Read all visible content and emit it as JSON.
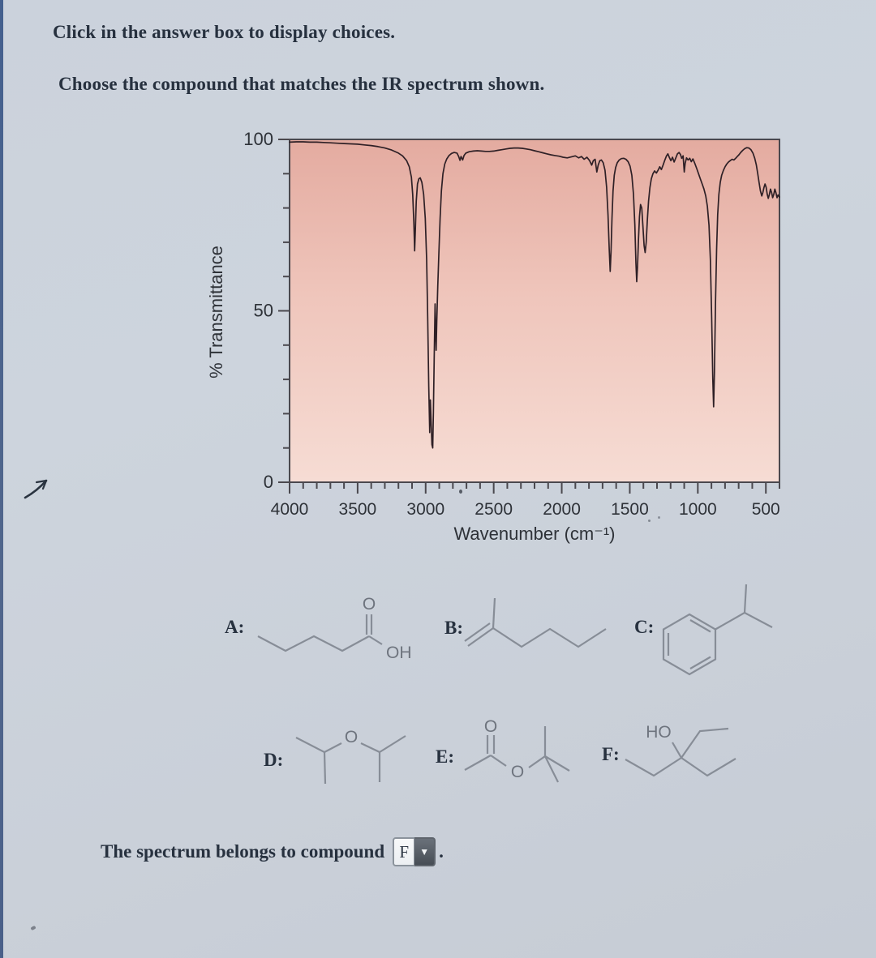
{
  "page": {
    "instruction_1": "Click in the answer box to display choices.",
    "instruction_2": "Choose the compound that matches the IR spectrum shown.",
    "answer_prefix": "The spectrum belongs to compound",
    "answer_value": "F",
    "answer_suffix": ".",
    "dropdown_glyph": "▼"
  },
  "chart_data": {
    "type": "line",
    "title": "",
    "xlabel": "Wavenumber (cm⁻¹)",
    "ylabel": "% Transmittance",
    "x_ticks": [
      4000,
      3500,
      3000,
      2500,
      2000,
      1500,
      1000,
      500
    ],
    "y_ticks": [
      100,
      50,
      0
    ],
    "x_minor_step": 100,
    "y_minor_step": 10,
    "xlim": [
      4000,
      400
    ],
    "ylim": [
      0,
      100
    ],
    "x_axis_reversed": true,
    "grid": false,
    "legend": false,
    "colors": {
      "plot_bg_top": "#e4aba0",
      "plot_bg_mid": "#efc5bb",
      "plot_bg_bottom": "#f6dcd4",
      "line": "#2e2026",
      "axis": "#4a484e"
    },
    "series": [
      {
        "name": "IR spectrum (% transmittance vs wavenumber)",
        "points": [
          [
            4000,
            99.2
          ],
          [
            3950,
            99.3
          ],
          [
            3900,
            99.3
          ],
          [
            3850,
            99.2
          ],
          [
            3800,
            99.2
          ],
          [
            3750,
            99.1
          ],
          [
            3700,
            99.0
          ],
          [
            3650,
            98.9
          ],
          [
            3600,
            98.8
          ],
          [
            3550,
            98.7
          ],
          [
            3500,
            98.6
          ],
          [
            3450,
            98.4
          ],
          [
            3400,
            98.2
          ],
          [
            3350,
            97.9
          ],
          [
            3300,
            97.5
          ],
          [
            3250,
            96.9
          ],
          [
            3200,
            96.0
          ],
          [
            3170,
            95.2
          ],
          [
            3140,
            93.8
          ],
          [
            3120,
            92.0
          ],
          [
            3105,
            89.0
          ],
          [
            3095,
            84.0
          ],
          [
            3087,
            76.0
          ],
          [
            3081,
            67.5
          ],
          [
            3076,
            73.0
          ],
          [
            3069,
            82.0
          ],
          [
            3060,
            87.0
          ],
          [
            3050,
            88.5
          ],
          [
            3040,
            88.8
          ],
          [
            3028,
            87.5
          ],
          [
            3015,
            84.0
          ],
          [
            3003,
            77.0
          ],
          [
            2993,
            65.0
          ],
          [
            2985,
            48.0
          ],
          [
            2977,
            28.0
          ],
          [
            2970,
            14.5
          ],
          [
            2965,
            24.0
          ],
          [
            2960,
            18.0
          ],
          [
            2954,
            11.0
          ],
          [
            2948,
            10.0
          ],
          [
            2943,
            20.0
          ],
          [
            2937,
            36.0
          ],
          [
            2931,
            52.0
          ],
          [
            2927,
            45.0
          ],
          [
            2923,
            38.5
          ],
          [
            2918,
            47.0
          ],
          [
            2911,
            57.0
          ],
          [
            2903,
            67.0
          ],
          [
            2894,
            77.0
          ],
          [
            2884,
            85.0
          ],
          [
            2873,
            90.0
          ],
          [
            2860,
            92.8
          ],
          [
            2845,
            94.3
          ],
          [
            2828,
            95.3
          ],
          [
            2810,
            95.9
          ],
          [
            2790,
            96.2
          ],
          [
            2770,
            96.0
          ],
          [
            2757,
            95.0
          ],
          [
            2748,
            93.9
          ],
          [
            2740,
            95.0
          ],
          [
            2728,
            94.0
          ],
          [
            2718,
            95.3
          ],
          [
            2705,
            96.0
          ],
          [
            2680,
            96.4
          ],
          [
            2650,
            96.6
          ],
          [
            2620,
            96.7
          ],
          [
            2590,
            96.6
          ],
          [
            2560,
            96.5
          ],
          [
            2530,
            96.5
          ],
          [
            2500,
            96.6
          ],
          [
            2470,
            96.8
          ],
          [
            2440,
            97.0
          ],
          [
            2410,
            97.2
          ],
          [
            2380,
            97.4
          ],
          [
            2350,
            97.5
          ],
          [
            2320,
            97.5
          ],
          [
            2290,
            97.4
          ],
          [
            2260,
            97.2
          ],
          [
            2230,
            97.0
          ],
          [
            2200,
            96.7
          ],
          [
            2170,
            96.4
          ],
          [
            2140,
            96.1
          ],
          [
            2110,
            95.8
          ],
          [
            2080,
            95.5
          ],
          [
            2050,
            95.3
          ],
          [
            2020,
            95.1
          ],
          [
            1990,
            94.8
          ],
          [
            1960,
            94.6
          ],
          [
            1930,
            94.9
          ],
          [
            1900,
            95.2
          ],
          [
            1875,
            94.6
          ],
          [
            1855,
            95.0
          ],
          [
            1835,
            94.2
          ],
          [
            1815,
            94.8
          ],
          [
            1795,
            93.8
          ],
          [
            1780,
            92.5
          ],
          [
            1768,
            93.8
          ],
          [
            1755,
            94.2
          ],
          [
            1742,
            90.5
          ],
          [
            1732,
            92.5
          ],
          [
            1720,
            93.8
          ],
          [
            1708,
            94.0
          ],
          [
            1695,
            93.2
          ],
          [
            1682,
            91.0
          ],
          [
            1670,
            86.0
          ],
          [
            1660,
            78.0
          ],
          [
            1651,
            68.0
          ],
          [
            1644,
            61.5
          ],
          [
            1638,
            67.0
          ],
          [
            1631,
            77.0
          ],
          [
            1623,
            85.0
          ],
          [
            1614,
            89.5
          ],
          [
            1604,
            91.8
          ],
          [
            1592,
            93.2
          ],
          [
            1578,
            94.0
          ],
          [
            1562,
            94.4
          ],
          [
            1545,
            94.5
          ],
          [
            1528,
            94.2
          ],
          [
            1512,
            93.5
          ],
          [
            1498,
            92.2
          ],
          [
            1485,
            89.5
          ],
          [
            1473,
            84.0
          ],
          [
            1463,
            75.0
          ],
          [
            1455,
            64.0
          ],
          [
            1449,
            58.5
          ],
          [
            1443,
            63.0
          ],
          [
            1436,
            71.0
          ],
          [
            1429,
            77.5
          ],
          [
            1421,
            81.0
          ],
          [
            1412,
            80.0
          ],
          [
            1403,
            74.5
          ],
          [
            1395,
            69.0
          ],
          [
            1387,
            67.0
          ],
          [
            1379,
            70.0
          ],
          [
            1371,
            76.5
          ],
          [
            1362,
            82.0
          ],
          [
            1352,
            86.0
          ],
          [
            1342,
            88.5
          ],
          [
            1330,
            90.0
          ],
          [
            1318,
            90.8
          ],
          [
            1305,
            90.2
          ],
          [
            1292,
            91.0
          ],
          [
            1280,
            92.0
          ],
          [
            1268,
            91.2
          ],
          [
            1255,
            92.5
          ],
          [
            1242,
            94.0
          ],
          [
            1230,
            95.2
          ],
          [
            1220,
            95.8
          ],
          [
            1210,
            94.8
          ],
          [
            1198,
            93.8
          ],
          [
            1186,
            94.8
          ],
          [
            1174,
            93.4
          ],
          [
            1162,
            94.6
          ],
          [
            1150,
            95.8
          ],
          [
            1138,
            96.2
          ],
          [
            1128,
            95.6
          ],
          [
            1118,
            94.5
          ],
          [
            1108,
            95.2
          ],
          [
            1100,
            90.5
          ],
          [
            1093,
            93.0
          ],
          [
            1083,
            94.6
          ],
          [
            1072,
            94.0
          ],
          [
            1060,
            94.5
          ],
          [
            1048,
            93.5
          ],
          [
            1036,
            94.3
          ],
          [
            1022,
            93.0
          ],
          [
            1008,
            91.5
          ],
          [
            995,
            90.0
          ],
          [
            982,
            88.5
          ],
          [
            968,
            87.0
          ],
          [
            955,
            85.5
          ],
          [
            942,
            83.5
          ],
          [
            930,
            80.5
          ],
          [
            918,
            75.0
          ],
          [
            908,
            65.0
          ],
          [
            898,
            48.0
          ],
          [
            890,
            30.0
          ],
          [
            884,
            22.0
          ],
          [
            878,
            32.0
          ],
          [
            870,
            52.0
          ],
          [
            862,
            68.0
          ],
          [
            854,
            78.0
          ],
          [
            845,
            84.0
          ],
          [
            835,
            87.5
          ],
          [
            825,
            89.5
          ],
          [
            812,
            91.0
          ],
          [
            800,
            92.0
          ],
          [
            788,
            92.8
          ],
          [
            775,
            93.4
          ],
          [
            762,
            93.8
          ],
          [
            748,
            94.2
          ],
          [
            735,
            94.0
          ],
          [
            722,
            94.5
          ],
          [
            710,
            95.0
          ],
          [
            698,
            95.5
          ],
          [
            685,
            96.2
          ],
          [
            670,
            96.8
          ],
          [
            655,
            97.3
          ],
          [
            640,
            97.6
          ],
          [
            625,
            97.5
          ],
          [
            610,
            97.0
          ],
          [
            595,
            96.0
          ],
          [
            582,
            94.5
          ],
          [
            570,
            92.5
          ],
          [
            560,
            90.0
          ],
          [
            550,
            87.5
          ],
          [
            540,
            85.0
          ],
          [
            530,
            83.5
          ],
          [
            522,
            84.5
          ],
          [
            514,
            86.0
          ],
          [
            506,
            87.0
          ],
          [
            498,
            86.0
          ],
          [
            490,
            84.0
          ],
          [
            482,
            82.8
          ],
          [
            474,
            84.0
          ],
          [
            466,
            85.5
          ],
          [
            458,
            84.5
          ],
          [
            450,
            83.0
          ],
          [
            442,
            84.0
          ],
          [
            434,
            85.5
          ],
          [
            426,
            84.5
          ],
          [
            418,
            83.0
          ],
          [
            410,
            83.8
          ],
          [
            400,
            83.2
          ]
        ]
      }
    ]
  },
  "compounds": [
    {
      "label": "A:",
      "atoms": [
        "O",
        "OH"
      ]
    },
    {
      "label": "B:",
      "atoms": []
    },
    {
      "label": "C:",
      "atoms": []
    },
    {
      "label": "D:",
      "atoms": [
        "O"
      ]
    },
    {
      "label": "E:",
      "atoms": [
        "O",
        "O"
      ]
    },
    {
      "label": "F:",
      "atoms": [
        "HO"
      ]
    }
  ]
}
